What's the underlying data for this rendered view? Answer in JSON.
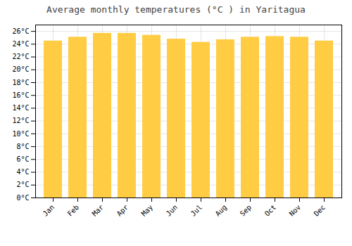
{
  "chart_data": {
    "type": "bar",
    "title": "Average monthly temperatures (°C ) in Yaritagua",
    "categories": [
      "Jan",
      "Feb",
      "Mar",
      "Apr",
      "May",
      "Jun",
      "Jul",
      "Aug",
      "Sep",
      "Oct",
      "Nov",
      "Dec"
    ],
    "values": [
      24.5,
      25.1,
      25.7,
      25.7,
      25.4,
      24.8,
      24.3,
      24.7,
      25.1,
      25.2,
      25.1,
      24.5
    ],
    "color": "#FFCC44",
    "ylim": [
      0,
      27
    ],
    "yticks": [
      {
        "value": 0,
        "label": "0°C"
      },
      {
        "value": 2,
        "label": "2°C"
      },
      {
        "value": 4,
        "label": "4°C"
      },
      {
        "value": 6,
        "label": "6°C"
      },
      {
        "value": 8,
        "label": "8°C"
      },
      {
        "value": 10,
        "label": "10°C"
      },
      {
        "value": 12,
        "label": "12°C"
      },
      {
        "value": 14,
        "label": "14°C"
      },
      {
        "value": 16,
        "label": "16°C"
      },
      {
        "value": 18,
        "label": "18°C"
      },
      {
        "value": 20,
        "label": "20°C"
      },
      {
        "value": 22,
        "label": "22°C"
      },
      {
        "value": 24,
        "label": "24°C"
      },
      {
        "value": 26,
        "label": "26°C"
      }
    ],
    "grid": true
  }
}
